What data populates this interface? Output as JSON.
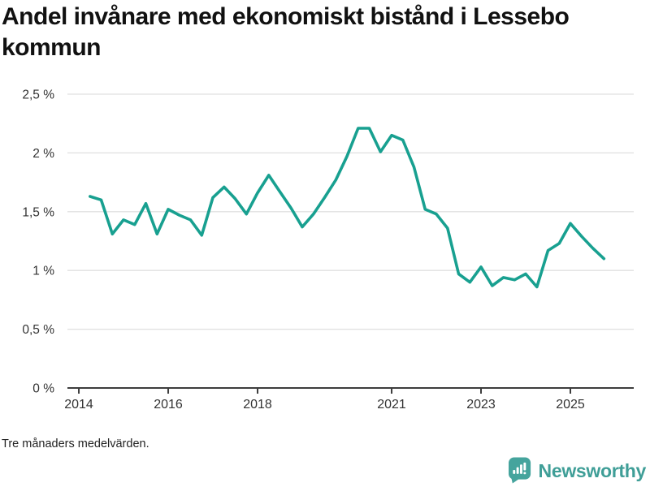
{
  "header": {
    "title": "Andel invånare med ekonomiskt bistånd i Lessebo kommun"
  },
  "footer": {
    "note": "Tre månaders medelvärden."
  },
  "branding": {
    "name": "Newsworthy",
    "icon": "newsworthy-speech-bubble-bar-chart-icon",
    "brand_color": "#3f9e97"
  },
  "colors": {
    "line": "#18a090",
    "grid": "#e0e0e0",
    "axis": "#3d3d3d",
    "tick_label": "#333333",
    "title_text": "#111111"
  },
  "chart_data": {
    "type": "line",
    "title": "Andel invånare med ekonomiskt bistånd i Lessebo kommun",
    "subtitle_note": "Tre månaders medelvärden.",
    "xlabel": "",
    "ylabel": "",
    "grid": "horizontal",
    "legend": "none",
    "line_color": "#18a090",
    "xlim": [
      2013.745,
      2026.418
    ],
    "ylim": [
      0,
      2.5
    ],
    "x_ticks": [
      {
        "year": 2014,
        "label": "2014"
      },
      {
        "year": 2016,
        "label": "2016"
      },
      {
        "year": 2018,
        "label": "2018"
      },
      {
        "year": 2021,
        "label": "2021"
      },
      {
        "year": 2023,
        "label": "2023"
      },
      {
        "year": 2025,
        "label": "2025"
      }
    ],
    "y_ticks": [
      {
        "value": 0,
        "label": "0 %"
      },
      {
        "value": 0.5,
        "label": "0,5 %"
      },
      {
        "value": 1,
        "label": "1 %"
      },
      {
        "value": 1.5,
        "label": "1,5 %"
      },
      {
        "value": 2,
        "label": "2 %"
      },
      {
        "value": 2.5,
        "label": "2,5 %"
      }
    ],
    "series": [
      {
        "name": "Andel invånare med ekonomiskt bistånd (%)",
        "x": [
          2014.25,
          2014.5,
          2014.75,
          2015.0,
          2015.25,
          2015.5,
          2015.75,
          2016.0,
          2016.25,
          2016.5,
          2016.75,
          2017.0,
          2017.25,
          2017.5,
          2017.75,
          2018.0,
          2018.25,
          2018.5,
          2018.75,
          2019.0,
          2019.25,
          2019.5,
          2019.75,
          2020.0,
          2020.25,
          2020.5,
          2020.75,
          2021.0,
          2021.25,
          2021.5,
          2021.75,
          2022.0,
          2022.25,
          2022.5,
          2022.75,
          2023.0,
          2023.25,
          2023.5,
          2023.75,
          2024.0,
          2024.25,
          2024.5,
          2024.75,
          2025.0,
          2025.25,
          2025.5,
          2025.75
        ],
        "values": [
          1.63,
          1.6,
          1.31,
          1.43,
          1.39,
          1.57,
          1.31,
          1.52,
          1.47,
          1.43,
          1.3,
          1.62,
          1.71,
          1.61,
          1.48,
          1.66,
          1.81,
          1.67,
          1.53,
          1.37,
          1.48,
          1.62,
          1.77,
          1.97,
          2.21,
          2.21,
          2.01,
          2.15,
          2.11,
          1.88,
          1.52,
          1.48,
          1.36,
          0.97,
          0.9,
          1.03,
          0.87,
          0.94,
          0.92,
          0.97,
          0.86,
          1.17,
          1.23,
          1.4,
          1.29,
          1.19,
          1.1
        ]
      }
    ]
  }
}
